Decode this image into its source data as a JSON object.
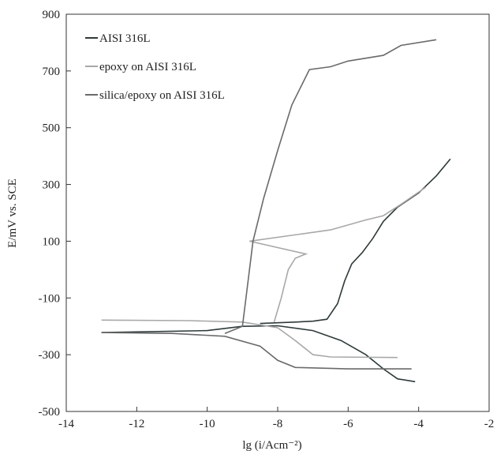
{
  "chart_data": {
    "type": "line",
    "xlabel": "lg (i/Acm⁻²)",
    "ylabel": "E/mV vs. SCE",
    "xlim": [
      -14,
      -2
    ],
    "ylim": [
      -500,
      900
    ],
    "xticks": [
      -14,
      -12,
      -10,
      -8,
      -6,
      -4,
      -2
    ],
    "yticks": [
      -500,
      -300,
      -100,
      100,
      300,
      500,
      700,
      900
    ],
    "legend": "upper left",
    "series": [
      {
        "name": "AISI 316L",
        "color": "#2f3a3a",
        "x": [
          -4.1,
          -4.6,
          -5.0,
          -5.5,
          -6.2,
          -7.0,
          -8.0,
          -9.0,
          -10.0,
          -13.0,
          null,
          -8.5,
          -7.5,
          -7.0,
          -6.6,
          -6.3,
          -6.1,
          -5.9,
          -5.6,
          -5.3,
          -5.0,
          -4.6,
          -4.0,
          -3.5,
          -3.1
        ],
        "values": [
          -395,
          -385,
          -350,
          -300,
          -250,
          -215,
          -198,
          -200,
          -215,
          -222,
          null,
          -190,
          -185,
          -182,
          -175,
          -120,
          -40,
          20,
          60,
          110,
          170,
          220,
          270,
          330,
          390
        ]
      },
      {
        "name": "epoxy on AISI 316L",
        "color": "#a8a8a8",
        "x": [
          -4.6,
          -6.5,
          -7.0,
          -7.5,
          -8.0,
          -9.0,
          -10.5,
          -13.0,
          null,
          -8.1,
          -7.9,
          -7.7,
          -7.5,
          -7.2,
          -8.8,
          -6.5,
          -5.5,
          -5.0,
          -4.5,
          -3.8
        ],
        "values": [
          -310,
          -308,
          -300,
          -250,
          -205,
          -185,
          -180,
          -178,
          null,
          -185,
          -100,
          0,
          40,
          55,
          100,
          140,
          175,
          190,
          230,
          290
        ]
      },
      {
        "name": "silica/epoxy on AISI 316L",
        "color": "#6a6a6a",
        "x": [
          -4.2,
          -6.0,
          -7.5,
          -8.0,
          -8.5,
          -9.5,
          -11.0,
          -13.0,
          null,
          -9.5,
          -9.0,
          -8.9,
          -8.7,
          -8.4,
          -8.0,
          -7.6,
          -7.1,
          -6.5,
          -6.0,
          -5.0,
          -4.5,
          -3.5
        ],
        "values": [
          -350,
          -350,
          -345,
          -320,
          -270,
          -235,
          -225,
          -222,
          null,
          -225,
          -200,
          -100,
          100,
          250,
          420,
          580,
          705,
          715,
          735,
          755,
          790,
          810
        ]
      }
    ]
  }
}
